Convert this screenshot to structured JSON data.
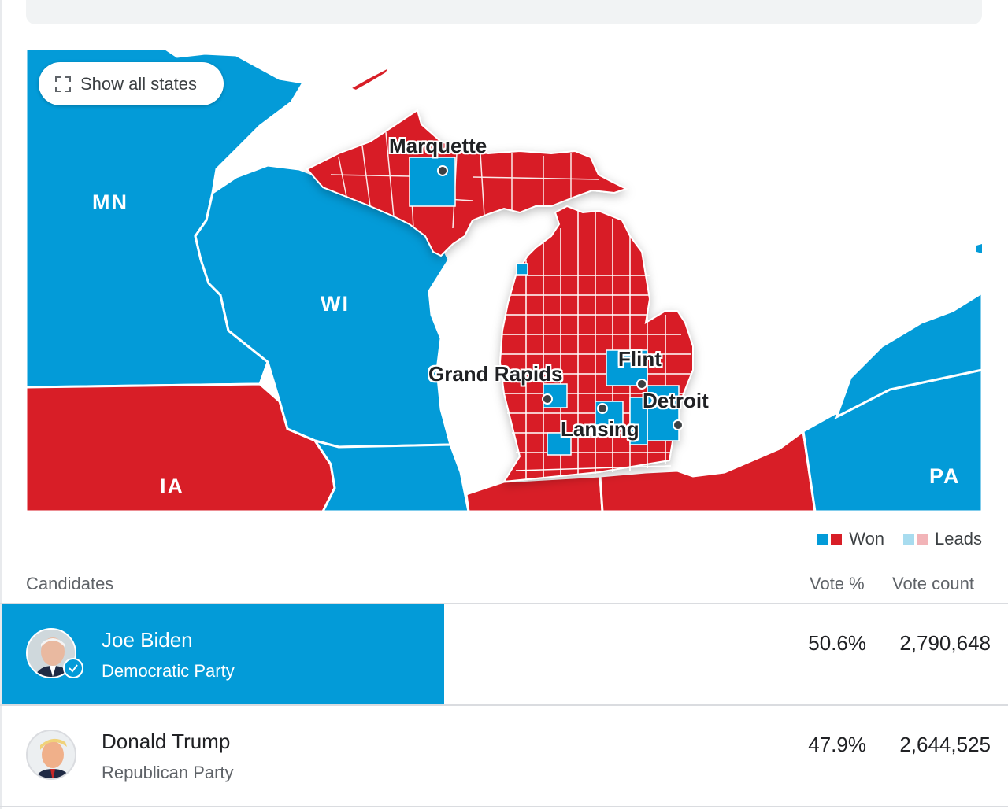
{
  "map": {
    "show_all_label": "Show all states",
    "cities": [
      "Marquette",
      "Grand Rapids",
      "Flint",
      "Detroit",
      "Lansing"
    ],
    "states": [
      "MN",
      "WI",
      "IA",
      "PA"
    ],
    "colors": {
      "dem_won": "#039bd8",
      "rep_won": "#d81e27",
      "dem_leads": "#a8dcef",
      "rep_leads": "#f2b4b8",
      "water": "#ffffff"
    }
  },
  "legend": {
    "won": "Won",
    "leads": "Leads"
  },
  "table": {
    "col_candidates": "Candidates",
    "col_vote_pct": "Vote %",
    "col_vote_count": "Vote count",
    "rows": [
      {
        "name": "Joe Biden",
        "party": "Democratic Party",
        "vote_pct": "50.6%",
        "vote_count": "2,790,648",
        "winner": true,
        "bar_fraction": 0.44
      },
      {
        "name": "Donald Trump",
        "party": "Republican Party",
        "vote_pct": "47.9%",
        "vote_count": "2,644,525",
        "winner": false
      }
    ]
  }
}
